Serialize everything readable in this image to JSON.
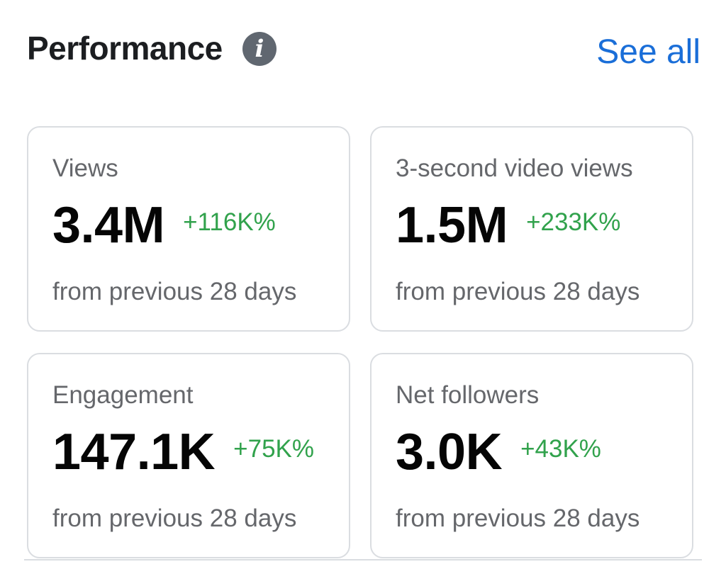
{
  "header": {
    "title": "Performance",
    "info_icon": "info-icon",
    "see_all_label": "See all"
  },
  "colors": {
    "title": "#1c1e21",
    "link": "#1a6ed8",
    "positive_change": "#31a24c",
    "muted_text": "#65676b",
    "card_border": "#dadde1"
  },
  "cards": [
    {
      "label": "Views",
      "value": "3.4M",
      "change": "+116K%",
      "subtext": "from previous 28 days"
    },
    {
      "label": "3-second video views",
      "value": "1.5M",
      "change": "+233K%",
      "subtext": "from previous 28 days"
    },
    {
      "label": "Engagement",
      "value": "147.1K",
      "change": "+75K%",
      "subtext": "from previous 28 days"
    },
    {
      "label": "Net followers",
      "value": "3.0K",
      "change": "+43K%",
      "subtext": "from previous 28 days"
    }
  ]
}
